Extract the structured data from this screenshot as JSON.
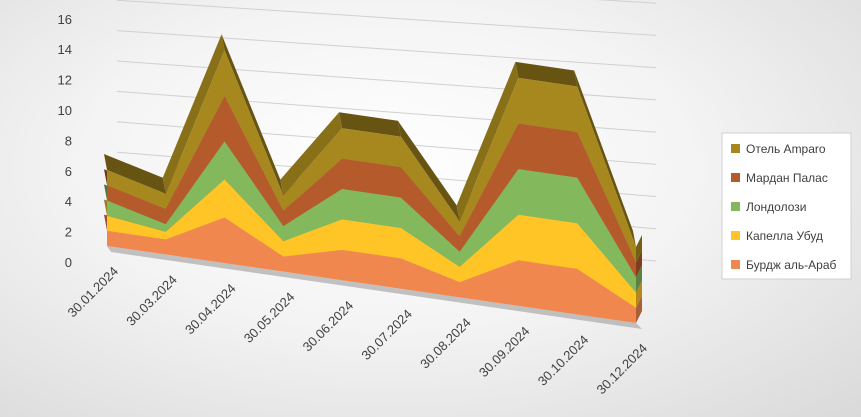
{
  "chart_data": {
    "type": "area",
    "stacked": true,
    "three_d": true,
    "title": "",
    "xlabel": "",
    "ylabel": "",
    "categories": [
      "30.01.2024",
      "30.03.2024",
      "30.04.2024",
      "30.05.2024",
      "30.06.2024",
      "30.07.2024",
      "30.08.2024",
      "30.09.2024",
      "30.10.2024",
      "30.12.2024"
    ],
    "ylim": [
      0,
      16
    ],
    "y_ticks": [
      "0",
      "2",
      "4",
      "6",
      "8",
      "10",
      "12",
      "14",
      "16"
    ],
    "grid": true,
    "legend_position": "right",
    "series": [
      {
        "name": "Бурдж аль-Араб",
        "color": "#F0874E",
        "values": [
          1,
          1,
          3,
          1,
          2,
          2,
          1,
          3,
          3,
          1
        ]
      },
      {
        "name": "Капелла Убуд",
        "color": "#FFC425",
        "values": [
          1,
          0.5,
          2.5,
          1,
          2,
          2,
          1,
          3,
          3,
          1
        ]
      },
      {
        "name": "Лондолози",
        "color": "#84B85C",
        "values": [
          1,
          0.5,
          2.5,
          1,
          2,
          2,
          1,
          3,
          3,
          1
        ]
      },
      {
        "name": "Мардан Палас",
        "color": "#B55A2B",
        "values": [
          1,
          1,
          3,
          1,
          2,
          2,
          1,
          3,
          3,
          1
        ]
      },
      {
        "name": "Отель Amparo",
        "color": "#A6881E",
        "values": [
          1,
          1,
          3,
          1,
          2,
          2,
          1,
          3,
          3,
          1
        ]
      }
    ]
  }
}
